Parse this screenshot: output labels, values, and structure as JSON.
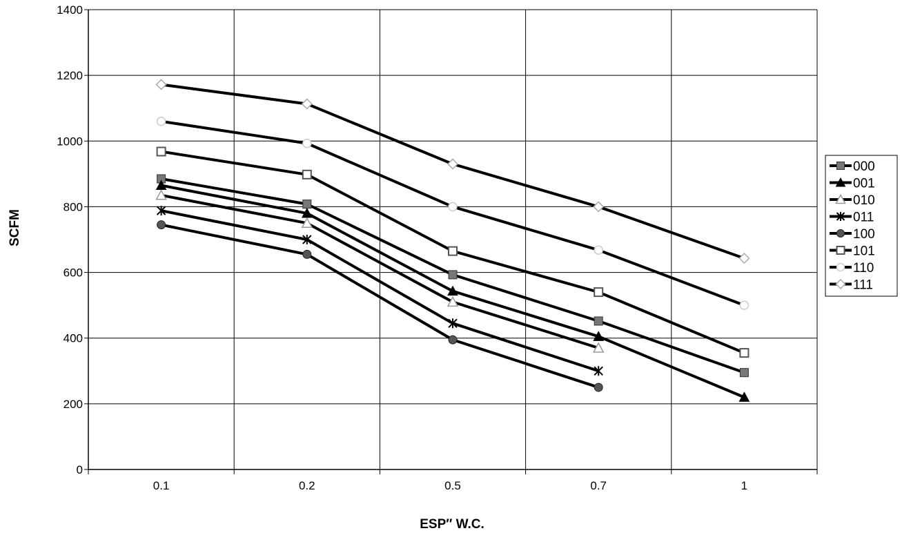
{
  "chart_data": {
    "type": "line",
    "title": "",
    "xlabel": "ESP″ W.C.",
    "ylabel": "SCFM",
    "categories": [
      "0.1",
      "0.2",
      "0.5",
      "0.7",
      "1"
    ],
    "ylim": [
      0,
      1400
    ],
    "yticks": [
      0,
      200,
      400,
      600,
      800,
      1000,
      1200,
      1400
    ],
    "grid": true,
    "legend_position": "right",
    "series": [
      {
        "name": "000",
        "marker": "square-filled",
        "color": "#777777",
        "values": [
          885,
          808,
          593,
          452,
          295
        ]
      },
      {
        "name": "001",
        "marker": "triangle-filled",
        "color": "#000000",
        "values": [
          865,
          780,
          543,
          405,
          220
        ]
      },
      {
        "name": "010",
        "marker": "triangle-open",
        "color": "#999999",
        "values": [
          835,
          750,
          510,
          370,
          null
        ]
      },
      {
        "name": "011",
        "marker": "x-star",
        "color": "#000000",
        "values": [
          788,
          700,
          445,
          300,
          null
        ]
      },
      {
        "name": "100",
        "marker": "circle-filled",
        "color": "#555555",
        "values": [
          745,
          655,
          395,
          250,
          null
        ]
      },
      {
        "name": "101",
        "marker": "square-open",
        "color": "#555555",
        "values": [
          968,
          898,
          665,
          540,
          355
        ]
      },
      {
        "name": "110",
        "marker": "circle-open",
        "color": "#cccccc",
        "values": [
          1060,
          993,
          800,
          668,
          500
        ]
      },
      {
        "name": "111",
        "marker": "diamond-open",
        "color": "#aaaaaa",
        "values": [
          1172,
          1113,
          930,
          800,
          643
        ]
      }
    ]
  }
}
